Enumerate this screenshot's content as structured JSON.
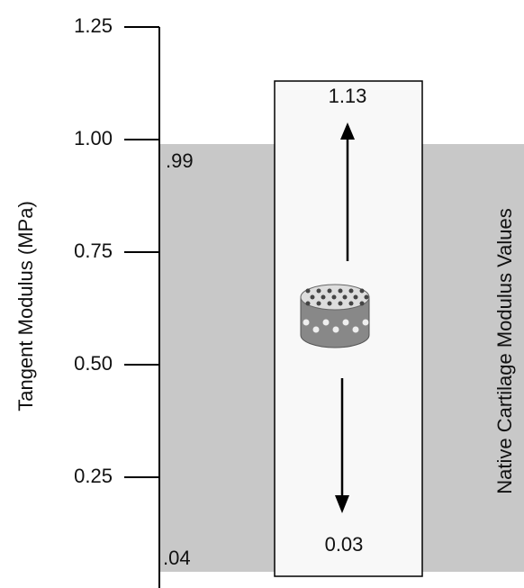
{
  "chart_data": {
    "type": "range",
    "ylabel": "Tangent Modulus (MPa)",
    "ylim": [
      0,
      1.25
    ],
    "yticks": [
      {
        "value": 0.25,
        "label": "0.25"
      },
      {
        "value": 0.5,
        "label": "0.50"
      },
      {
        "value": 0.75,
        "label": "0.75"
      },
      {
        "value": 1,
        "label": "1.00"
      },
      1.25
    ],
    "native_range": {
      "name": "Native Cartilage Modulus Values",
      "values": [
        0.04,
        0.99
      ],
      "value_labels": [
        ".04",
        ".99"
      ],
      "color": "#c8c8c8"
    },
    "scaffold_range": {
      "values": [
        0.03,
        1.13
      ],
      "value_labels": [
        "0.03",
        "1.13"
      ],
      "color": "#f8f8f8"
    }
  }
}
